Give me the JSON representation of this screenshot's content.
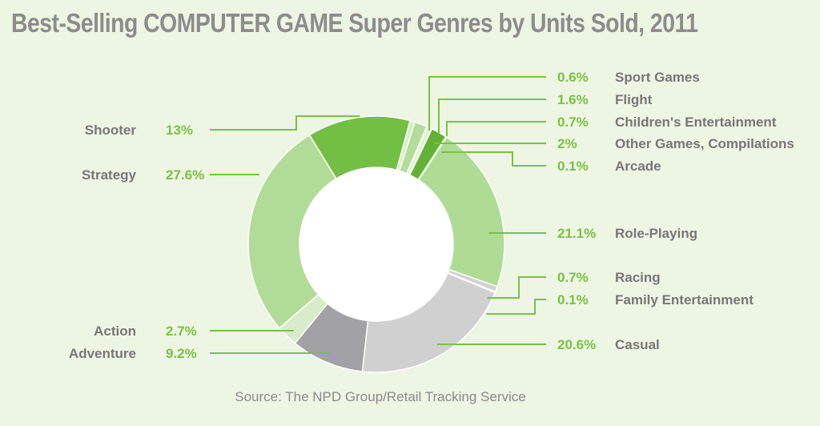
{
  "chart_data": {
    "type": "pie",
    "title": "Best-Selling COMPUTER GAME Super Genres by Units Sold, 2011",
    "source": "Source: The NPD Group/Retail Tracking Service",
    "slices": [
      {
        "label": "Shooter",
        "pct_text": "13%",
        "value": 13,
        "color": "#72bf44"
      },
      {
        "label": "Sport Games",
        "pct_text": "0.6%",
        "value": 0.6,
        "color": "#d7ecc7"
      },
      {
        "label": "Flight",
        "pct_text": "1.6%",
        "value": 1.6,
        "color": "#b3dd99"
      },
      {
        "label": "Children's Entertainment",
        "pct_text": "0.7%",
        "value": 0.7,
        "color": "#e4f2d8"
      },
      {
        "label": "Other Games, Compilations",
        "pct_text": "2%",
        "value": 2,
        "color": "#63b236"
      },
      {
        "label": "Arcade",
        "pct_text": "0.1%",
        "value": 0.1,
        "color": "#e4f2d8"
      },
      {
        "label": "Role-Playing",
        "pct_text": "21.1%",
        "value": 21.1,
        "color": "#afdc95"
      },
      {
        "label": "Racing",
        "pct_text": "0.7%",
        "value": 0.7,
        "color": "#d2d2d2"
      },
      {
        "label": "Family Entertainment",
        "pct_text": "0.1%",
        "value": 0.1,
        "color": "#a7a7a7"
      },
      {
        "label": "Casual",
        "pct_text": "20.6%",
        "value": 20.6,
        "color": "#d0d0d0"
      },
      {
        "label": "Adventure",
        "pct_text": "9.2%",
        "value": 9.2,
        "color": "#a2a2a6"
      },
      {
        "label": "Action",
        "pct_text": "2.7%",
        "value": 2.7,
        "color": "#d9ecca"
      },
      {
        "label": "Strategy",
        "pct_text": "27.6%",
        "value": 27.6,
        "color": "#b1dc97"
      }
    ],
    "leader_color": "#7bc143",
    "slice_border_color": "#ffffff"
  }
}
